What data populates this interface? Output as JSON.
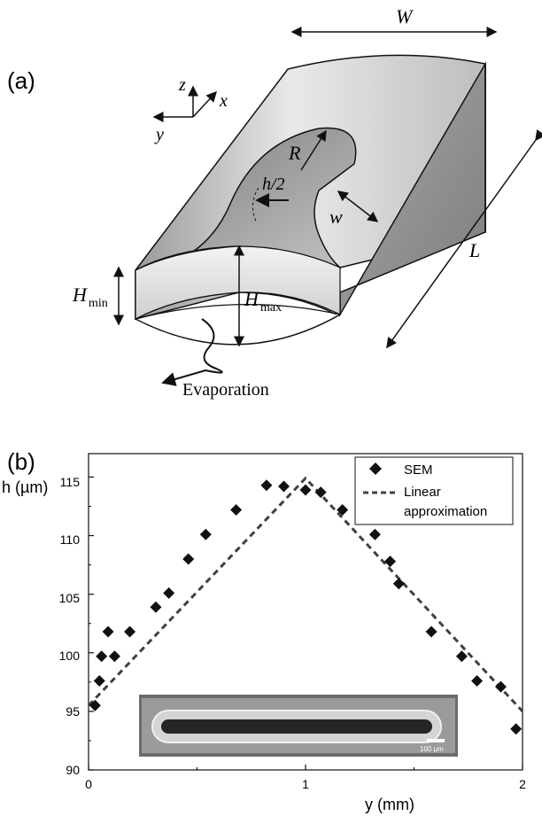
{
  "panel_a": {
    "label": "(a)",
    "dimensions": {
      "W": "W",
      "L": "L",
      "R": "R",
      "h_half": "h/2",
      "w": "w",
      "H_min_main": "H",
      "H_min_sub": "min",
      "H_max_main": "H",
      "H_max_sub": "max"
    },
    "axes": {
      "x": "x",
      "y": "y",
      "z": "z"
    },
    "evaporation_label": "Evaporation"
  },
  "panel_b": {
    "label": "(b)",
    "inset_scalebar": "100 μm"
  },
  "chart_data": {
    "type": "scatter",
    "title": "",
    "xlabel": "y (mm)",
    "ylabel": "h (µm)",
    "xlim": [
      0,
      2
    ],
    "ylim": [
      90,
      117
    ],
    "x_ticks": [
      "0",
      "1",
      "2"
    ],
    "y_ticks": [
      "90",
      "95",
      "100",
      "105",
      "110",
      "115"
    ],
    "legend": {
      "placement": "top-right",
      "entries": [
        "SEM",
        "Linear",
        "approximation"
      ]
    },
    "series": [
      {
        "name": "SEM",
        "marker": "diamond",
        "points": [
          [
            0.03,
            95.5
          ],
          [
            0.05,
            97.6
          ],
          [
            0.06,
            99.7
          ],
          [
            0.09,
            101.8
          ],
          [
            0.12,
            99.7
          ],
          [
            0.19,
            101.8
          ],
          [
            0.31,
            103.9
          ],
          [
            0.37,
            105.1
          ],
          [
            0.46,
            108.0
          ],
          [
            0.54,
            110.1
          ],
          [
            0.68,
            112.2
          ],
          [
            0.82,
            114.3
          ],
          [
            0.9,
            114.2
          ],
          [
            1.0,
            113.9
          ],
          [
            1.07,
            113.7
          ],
          [
            1.17,
            112.2
          ],
          [
            1.32,
            110.1
          ],
          [
            1.39,
            107.8
          ],
          [
            1.43,
            105.9
          ],
          [
            1.58,
            101.8
          ],
          [
            1.72,
            99.7
          ],
          [
            1.79,
            97.6
          ],
          [
            1.9,
            97.1
          ],
          [
            1.97,
            93.5
          ]
        ]
      },
      {
        "name": "Linear approximation",
        "style": "dashed",
        "points": [
          [
            0,
            95.5
          ],
          [
            1.0,
            114.9
          ],
          [
            2.0,
            95.0
          ]
        ]
      }
    ]
  },
  "colors": {
    "marker": "#111111",
    "dashed_line": "#404040",
    "surface_light": "#d6d6d6",
    "surface_dark": "#8a8a8a"
  }
}
